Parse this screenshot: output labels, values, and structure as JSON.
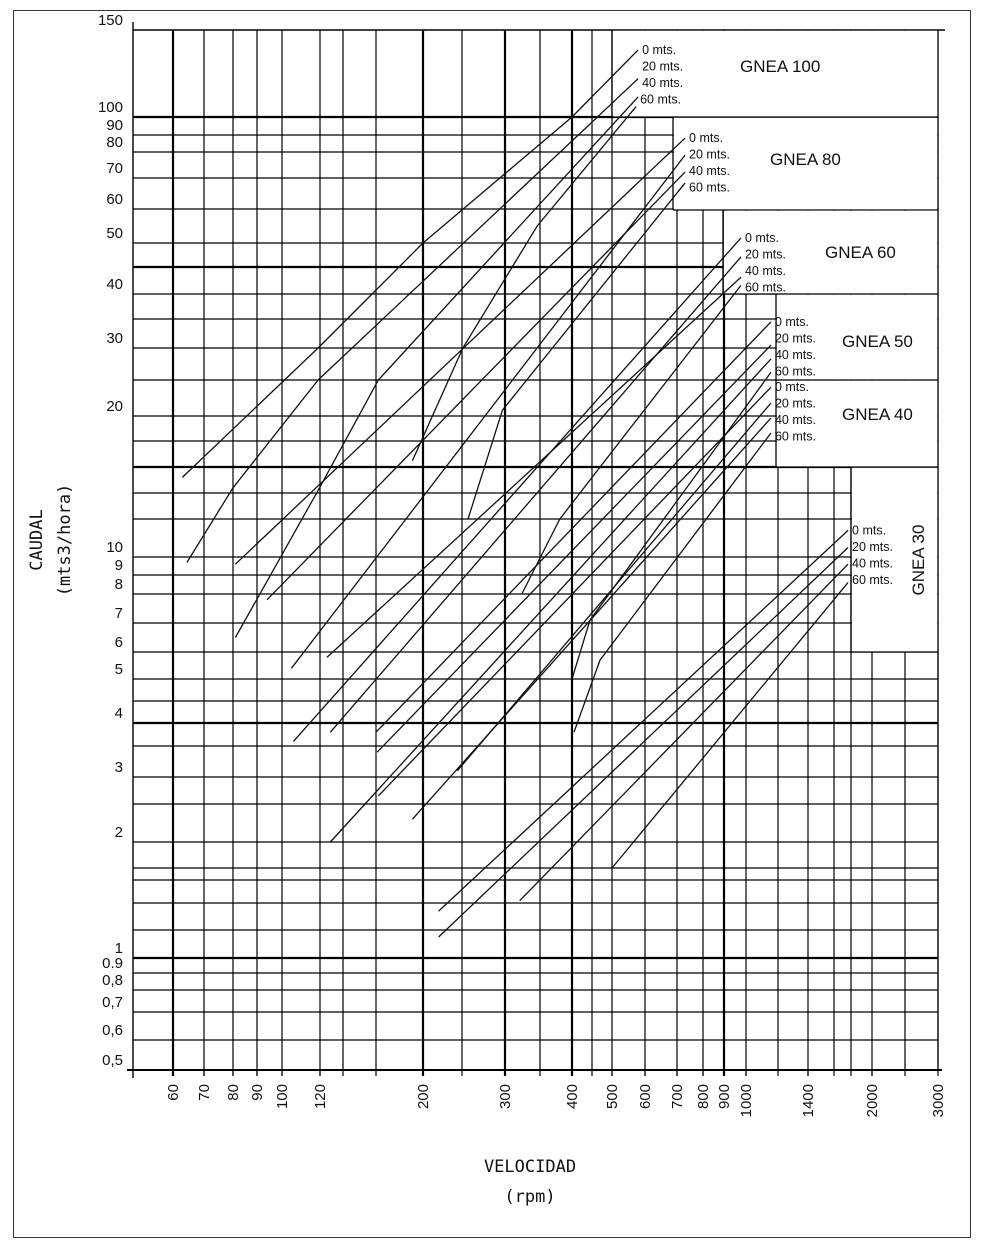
{
  "chart_data": {
    "type": "line",
    "title": "",
    "xlabel": "VELOCIDAD",
    "xlabel_unit": "(rpm)",
    "ylabel": "CAUDAL",
    "ylabel_unit": "(mts3/hora)",
    "xlim": [
      50,
      3000
    ],
    "ylim": [
      0.5,
      150
    ],
    "grid": true,
    "x_ticks": [
      "60",
      "70",
      "80",
      "90",
      "100",
      "120",
      "200",
      "300",
      "400",
      "500",
      "600",
      "700",
      "800",
      "900",
      "1000",
      "1400",
      "2000",
      "3000"
    ],
    "y_ticks": [
      "150",
      "100",
      "90",
      "80",
      "70",
      "60",
      "50",
      "40",
      "30",
      "20",
      "10",
      "9",
      "8",
      "7",
      "6",
      "5",
      "4",
      "3",
      "2",
      "1",
      "0.9",
      "0,8",
      "0,7",
      "0,6",
      "0,5"
    ],
    "families": [
      {
        "name": "GNEA 100",
        "series": [
          {
            "name": "0 mts.",
            "points": [
              [
                63,
                14.6
              ],
              [
                119,
                30
              ],
              [
                200,
                50
              ],
              [
                400,
                100
              ],
              [
                579,
                138.5
              ]
            ]
          },
          {
            "name": "20 mts.",
            "points": [
              [
                64.5,
                9.7
              ],
              [
                80,
                14.2
              ],
              [
                119,
                25
              ],
              [
                579,
                122
              ]
            ]
          },
          {
            "name": "40 mts.",
            "points": [
              [
                81,
                6.5
              ],
              [
                119,
                14.1
              ],
              [
                162,
                25
              ],
              [
                579,
                111.5
              ]
            ]
          },
          {
            "name": "60 mts.",
            "points": [
              [
                191,
                15.6
              ],
              [
                251,
                30
              ],
              [
                346,
                55
              ],
              [
                573,
                106
              ]
            ]
          }
        ]
      },
      {
        "name": "GNEA 80",
        "series": [
          {
            "name": "0 mts.",
            "points": [
              [
                81,
                9.6
              ],
              [
                731,
                88.2
              ]
            ]
          },
          {
            "name": "20 mts.",
            "points": [
              [
                105,
                5.4
              ],
              [
                731,
                78.8
              ]
            ]
          },
          {
            "name": "40 mts.",
            "points": [
              [
                94,
                7.8
              ],
              [
                731,
                72.3
              ]
            ]
          },
          {
            "name": "60 mts.",
            "points": [
              [
                257,
                12
              ],
              [
                297,
                20.8
              ],
              [
                731,
                68.4
              ]
            ]
          }
        ]
      },
      {
        "name": "GNEA 60",
        "series": [
          {
            "name": "0 mts.",
            "points": [
              [
                106,
                3.6
              ],
              [
                977,
                51.5
              ]
            ]
          },
          {
            "name": "20 mts.",
            "points": [
              [
                129,
                3.8
              ],
              [
                977,
                47.1
              ]
            ]
          },
          {
            "name": "40 mts.",
            "points": [
              [
                126,
                5.8
              ],
              [
                977,
                43.1
              ]
            ]
          },
          {
            "name": "60 mts.",
            "points": [
              [
                324,
                8
              ],
              [
                381,
                12
              ],
              [
                977,
                41.6
              ]
            ]
          }
        ]
      },
      {
        "name": "GNEA 50",
        "series": [
          {
            "name": "0 mts.",
            "points": [
              [
                160,
                3.8
              ],
              [
                1156,
                34.5
              ]
            ]
          },
          {
            "name": "20 mts.",
            "points": [
              [
                161,
                3.4
              ],
              [
                1156,
                30.5
              ]
            ]
          },
          {
            "name": "40 mts.",
            "points": [
              [
                129,
                2.0
              ],
              [
                1156,
                28.3
              ]
            ]
          },
          {
            "name": "60 mts.",
            "points": [
              [
                400,
                5.0
              ],
              [
                445,
                7.1
              ],
              [
                1156,
                26.2
              ]
            ]
          }
        ]
      },
      {
        "name": "GNEA 40",
        "series": [
          {
            "name": "0 mts.",
            "points": [
              [
                162,
                2.65
              ],
              [
                1156,
                24.0
              ]
            ]
          },
          {
            "name": "20 mts.",
            "points": [
              [
                244,
                3.1
              ],
              [
                1156,
                21.8
              ]
            ]
          },
          {
            "name": "40 mts.",
            "points": [
              [
                191,
                2.3
              ],
              [
                1156,
                19.8
              ]
            ]
          },
          {
            "name": "60 mts.",
            "points": [
              [
                405,
                3.8
              ],
              [
                470,
                5.7
              ],
              [
                1156,
                18.3
              ]
            ]
          }
        ]
      },
      {
        "name": "GNEA 30",
        "series": [
          {
            "name": "0 mts.",
            "points": [
              [
                220,
                1.41
              ],
              [
                1765,
                11.4
              ]
            ]
          },
          {
            "name": "20 mts.",
            "points": [
              [
                220,
                1.15
              ],
              [
                1765,
                10.5
              ]
            ]
          },
          {
            "name": "40 mts.",
            "points": [
              [
                321,
                1.52
              ],
              [
                1765,
                9.6
              ]
            ]
          },
          {
            "name": "60 mts.",
            "points": [
              [
                500,
                1.8
              ],
              [
                1765,
                8.6
              ]
            ]
          }
        ]
      }
    ]
  }
}
